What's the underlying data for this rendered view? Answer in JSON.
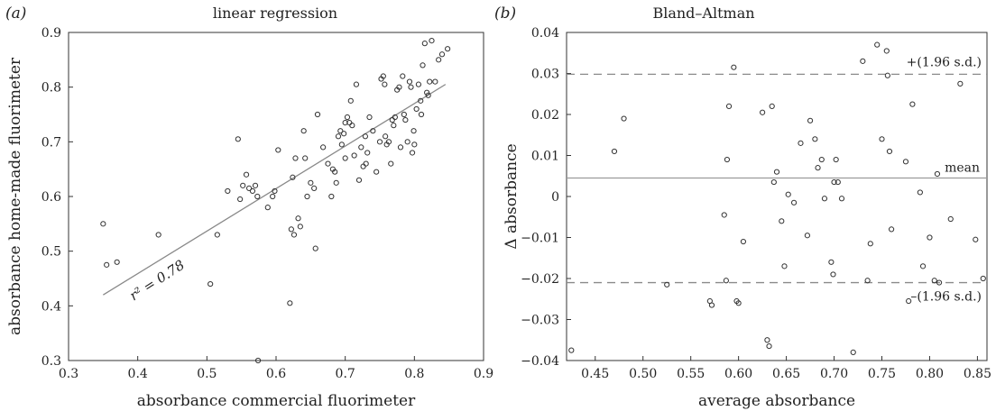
{
  "chart_data": [
    {
      "type": "scatter",
      "panel_label": "(a)",
      "title": "linear regression",
      "xlabel": "absorbance commercial fluorimeter",
      "ylabel": "absorbance home-made fluorimeter",
      "xlim": [
        0.3,
        0.9
      ],
      "ylim": [
        0.3,
        0.9
      ],
      "xticks": [
        "0.3",
        "0.4",
        "0.5",
        "0.6",
        "0.7",
        "0.8",
        "0.9"
      ],
      "yticks": [
        "0.3",
        "0.4",
        "0.5",
        "0.6",
        "0.7",
        "0.8",
        "0.9"
      ],
      "grid": false,
      "points": [
        [
          0.35,
          0.55
        ],
        [
          0.355,
          0.475
        ],
        [
          0.37,
          0.48
        ],
        [
          0.43,
          0.53
        ],
        [
          0.505,
          0.44
        ],
        [
          0.515,
          0.53
        ],
        [
          0.53,
          0.61
        ],
        [
          0.545,
          0.705
        ],
        [
          0.548,
          0.595
        ],
        [
          0.552,
          0.62
        ],
        [
          0.557,
          0.64
        ],
        [
          0.561,
          0.615
        ],
        [
          0.566,
          0.61
        ],
        [
          0.57,
          0.62
        ],
        [
          0.573,
          0.6
        ],
        [
          0.574,
          0.3
        ],
        [
          0.588,
          0.58
        ],
        [
          0.595,
          0.6
        ],
        [
          0.598,
          0.61
        ],
        [
          0.603,
          0.685
        ],
        [
          0.62,
          0.405
        ],
        [
          0.622,
          0.54
        ],
        [
          0.624,
          0.635
        ],
        [
          0.626,
          0.53
        ],
        [
          0.628,
          0.67
        ],
        [
          0.632,
          0.56
        ],
        [
          0.635,
          0.545
        ],
        [
          0.64,
          0.72
        ],
        [
          0.642,
          0.67
        ],
        [
          0.645,
          0.6
        ],
        [
          0.65,
          0.625
        ],
        [
          0.655,
          0.615
        ],
        [
          0.657,
          0.505
        ],
        [
          0.66,
          0.75
        ],
        [
          0.668,
          0.69
        ],
        [
          0.675,
          0.66
        ],
        [
          0.68,
          0.6
        ],
        [
          0.682,
          0.65
        ],
        [
          0.685,
          0.645
        ],
        [
          0.687,
          0.625
        ],
        [
          0.69,
          0.71
        ],
        [
          0.693,
          0.72
        ],
        [
          0.695,
          0.695
        ],
        [
          0.698,
          0.715
        ],
        [
          0.7,
          0.67
        ],
        [
          0.703,
          0.745
        ],
        [
          0.706,
          0.735
        ],
        [
          0.708,
          0.775
        ],
        [
          0.71,
          0.73
        ],
        [
          0.713,
          0.675
        ],
        [
          0.716,
          0.805
        ],
        [
          0.72,
          0.63
        ],
        [
          0.723,
          0.69
        ],
        [
          0.726,
          0.655
        ],
        [
          0.729,
          0.71
        ],
        [
          0.732,
          0.68
        ],
        [
          0.735,
          0.745
        ],
        [
          0.74,
          0.72
        ],
        [
          0.745,
          0.645
        ],
        [
          0.75,
          0.7
        ],
        [
          0.752,
          0.815
        ],
        [
          0.755,
          0.82
        ],
        [
          0.757,
          0.805
        ],
        [
          0.76,
          0.695
        ],
        [
          0.763,
          0.7
        ],
        [
          0.766,
          0.66
        ],
        [
          0.768,
          0.74
        ],
        [
          0.77,
          0.73
        ],
        [
          0.772,
          0.745
        ],
        [
          0.775,
          0.795
        ],
        [
          0.778,
          0.8
        ],
        [
          0.78,
          0.69
        ],
        [
          0.783,
          0.82
        ],
        [
          0.785,
          0.75
        ],
        [
          0.787,
          0.74
        ],
        [
          0.79,
          0.7
        ],
        [
          0.793,
          0.81
        ],
        [
          0.795,
          0.8
        ],
        [
          0.797,
          0.68
        ],
        [
          0.799,
          0.72
        ],
        [
          0.8,
          0.695
        ],
        [
          0.803,
          0.76
        ],
        [
          0.806,
          0.805
        ],
        [
          0.809,
          0.775
        ],
        [
          0.812,
          0.84
        ],
        [
          0.815,
          0.88
        ],
        [
          0.818,
          0.79
        ],
        [
          0.82,
          0.785
        ],
        [
          0.822,
          0.81
        ],
        [
          0.825,
          0.885
        ],
        [
          0.83,
          0.81
        ],
        [
          0.835,
          0.85
        ],
        [
          0.84,
          0.86
        ],
        [
          0.848,
          0.87
        ],
        [
          0.81,
          0.75
        ],
        [
          0.73,
          0.66
        ],
        [
          0.7,
          0.735
        ],
        [
          0.758,
          0.71
        ]
      ],
      "fit_line": [
        [
          0.35,
          0.42
        ],
        [
          0.845,
          0.805
        ]
      ],
      "annotation": "r² = 0.78"
    },
    {
      "type": "scatter",
      "panel_label": "(b)",
      "title": "Bland–Altman",
      "xlabel": "average absorbance",
      "ylabel": "Δ absorbance",
      "xlim": [
        0.42,
        0.86
      ],
      "ylim": [
        -0.04,
        0.04
      ],
      "xticks": [
        "0.45",
        "0.50",
        "0.55",
        "0.60",
        "0.65",
        "0.70",
        "0.75",
        "0.80",
        "0.85"
      ],
      "yticks": [
        "−0.04",
        "−0.03",
        "−0.02",
        "−0.01",
        "0",
        "0.01",
        "0.02",
        "0.03",
        "0.04"
      ],
      "grid": false,
      "points": [
        [
          0.425,
          -0.0375
        ],
        [
          0.47,
          0.011
        ],
        [
          0.48,
          0.019
        ],
        [
          0.525,
          -0.0215
        ],
        [
          0.57,
          -0.0255
        ],
        [
          0.572,
          -0.0265
        ],
        [
          0.585,
          -0.0045
        ],
        [
          0.587,
          -0.0205
        ],
        [
          0.588,
          0.009
        ],
        [
          0.59,
          0.022
        ],
        [
          0.595,
          0.0315
        ],
        [
          0.598,
          -0.0255
        ],
        [
          0.6,
          -0.026
        ],
        [
          0.605,
          -0.011
        ],
        [
          0.625,
          0.0205
        ],
        [
          0.63,
          -0.035
        ],
        [
          0.632,
          -0.0365
        ],
        [
          0.635,
          0.022
        ],
        [
          0.637,
          0.0035
        ],
        [
          0.64,
          0.006
        ],
        [
          0.645,
          -0.006
        ],
        [
          0.648,
          -0.017
        ],
        [
          0.652,
          0.0005
        ],
        [
          0.658,
          -0.0015
        ],
        [
          0.665,
          0.013
        ],
        [
          0.672,
          -0.0095
        ],
        [
          0.675,
          0.0185
        ],
        [
          0.68,
          0.014
        ],
        [
          0.683,
          0.007
        ],
        [
          0.687,
          0.009
        ],
        [
          0.69,
          -0.0005
        ],
        [
          0.697,
          -0.016
        ],
        [
          0.699,
          -0.019
        ],
        [
          0.7,
          0.0035
        ],
        [
          0.702,
          0.009
        ],
        [
          0.704,
          0.0035
        ],
        [
          0.708,
          -0.0005
        ],
        [
          0.72,
          -0.038
        ],
        [
          0.73,
          0.033
        ],
        [
          0.735,
          -0.0205
        ],
        [
          0.738,
          -0.0115
        ],
        [
          0.745,
          0.037
        ],
        [
          0.75,
          0.014
        ],
        [
          0.755,
          0.0355
        ],
        [
          0.756,
          0.0295
        ],
        [
          0.758,
          0.011
        ],
        [
          0.76,
          -0.008
        ],
        [
          0.775,
          0.0085
        ],
        [
          0.778,
          -0.0255
        ],
        [
          0.782,
          0.0225
        ],
        [
          0.79,
          0.001
        ],
        [
          0.793,
          -0.017
        ],
        [
          0.8,
          -0.01
        ],
        [
          0.805,
          -0.0205
        ],
        [
          0.808,
          0.0055
        ],
        [
          0.81,
          -0.021
        ],
        [
          0.822,
          -0.0055
        ],
        [
          0.832,
          0.0275
        ],
        [
          0.848,
          -0.0105
        ],
        [
          0.856,
          -0.02
        ]
      ],
      "mean": 0.0045,
      "upper_limit": 0.0298,
      "lower_limit": -0.021,
      "mean_label": "mean",
      "upper_label": "+(1.96 s.d.)",
      "lower_label": "–(1.96 s.d.)"
    }
  ]
}
